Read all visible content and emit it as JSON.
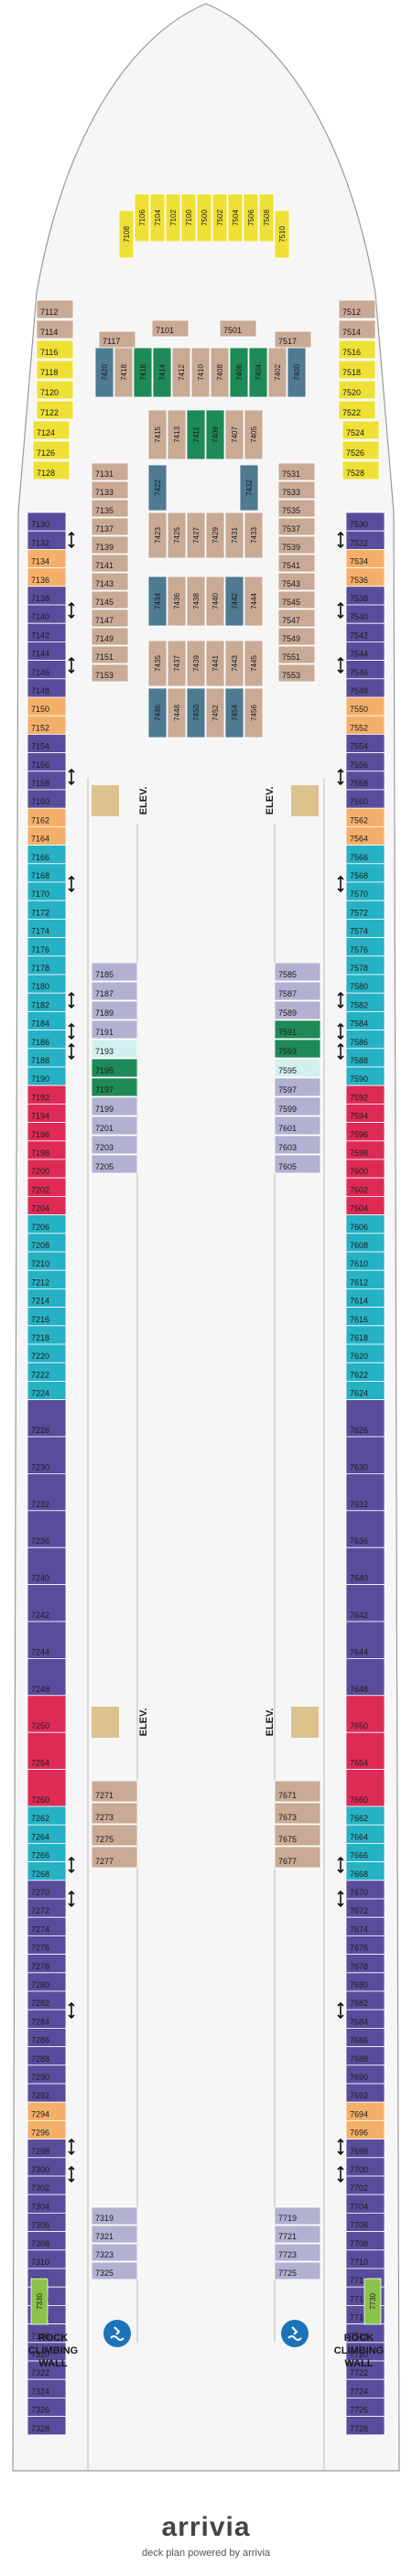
{
  "colors": {
    "gold": "#efe036",
    "tan": "#c9aa95",
    "orange": "#f4b06a",
    "teal": "#26b2c4",
    "purple": "#5a4c9c",
    "red": "#dd2b55",
    "dark_green": "#1e8a57",
    "blue_gray": "#4e7a92",
    "lavender": "#b3b1d2",
    "light_green": "#8bc34a",
    "pale_aqua": "#d2f0ee",
    "elev": "#dcc38e",
    "hull": "#f6f6f6",
    "outline": "#9a9a9a"
  },
  "icons": {
    "accessible_room": "accessible-icon",
    "connecting_room": "connecting-room-arrow-icon",
    "sofa_bed": "asterisk-icon",
    "pool": "pool-icon"
  },
  "labels": {
    "elevator": "ELEV.",
    "rock_wall": "ROCK CLIMBING WALL",
    "brand": "arrivia",
    "tagline": "deck plan powered by arrivia"
  },
  "forward_suites": [
    {
      "id": "7108",
      "color": "gold"
    },
    {
      "id": "7106",
      "color": "gold"
    },
    {
      "id": "7104",
      "color": "gold"
    },
    {
      "id": "7102",
      "color": "gold"
    },
    {
      "id": "7100",
      "color": "gold"
    },
    {
      "id": "7500",
      "color": "gold"
    },
    {
      "id": "7502",
      "color": "gold"
    },
    {
      "id": "7504",
      "color": "gold"
    },
    {
      "id": "7506",
      "color": "gold"
    },
    {
      "id": "7508",
      "color": "gold"
    },
    {
      "id": "7510",
      "color": "gold"
    }
  ],
  "forward_side_port": [
    {
      "id": "7112",
      "color": "tan"
    },
    {
      "id": "7114",
      "color": "tan"
    },
    {
      "id": "7116",
      "color": "gold"
    },
    {
      "id": "7118",
      "color": "gold"
    },
    {
      "id": "7120",
      "color": "gold"
    },
    {
      "id": "7122",
      "color": "gold"
    },
    {
      "id": "7124",
      "color": "gold"
    },
    {
      "id": "7126",
      "color": "gold"
    },
    {
      "id": "7128",
      "color": "gold"
    }
  ],
  "forward_side_starboard": [
    {
      "id": "7512",
      "color": "tan"
    },
    {
      "id": "7514",
      "color": "tan"
    },
    {
      "id": "7516",
      "color": "gold"
    },
    {
      "id": "7518",
      "color": "gold"
    },
    {
      "id": "7520",
      "color": "gold"
    },
    {
      "id": "7522",
      "color": "gold"
    },
    {
      "id": "7524",
      "color": "gold"
    },
    {
      "id": "7526",
      "color": "gold"
    },
    {
      "id": "7528",
      "color": "gold"
    }
  ],
  "forward_center_top": [
    {
      "id": "7117",
      "color": "tan"
    },
    {
      "id": "7101",
      "color": "tan"
    },
    {
      "id": "7501",
      "color": "tan"
    },
    {
      "id": "7517",
      "color": "tan"
    }
  ],
  "forward_center_vertical": [
    {
      "id": "7420",
      "color": "blue_gray"
    },
    {
      "id": "7418",
      "color": "tan"
    },
    {
      "id": "7416",
      "color": "dark_green"
    },
    {
      "id": "7414",
      "color": "dark_green"
    },
    {
      "id": "7412",
      "color": "tan"
    },
    {
      "id": "7410",
      "color": "tan"
    },
    {
      "id": "7408",
      "color": "tan"
    },
    {
      "id": "7406",
      "color": "dark_green"
    },
    {
      "id": "7404",
      "color": "dark_green"
    },
    {
      "id": "7402",
      "color": "tan"
    },
    {
      "id": "7400",
      "color": "blue_gray"
    }
  ],
  "port_rows": [
    {
      "id": "7130",
      "color": "purple"
    },
    {
      "id": "7132",
      "color": "purple"
    },
    {
      "id": "7134",
      "color": "orange"
    },
    {
      "id": "7136",
      "color": "orange"
    },
    {
      "id": "7138",
      "color": "purple"
    },
    {
      "id": "7140",
      "color": "purple"
    },
    {
      "id": "7142",
      "color": "purple"
    },
    {
      "id": "7144",
      "color": "purple"
    },
    {
      "id": "7146",
      "color": "purple"
    },
    {
      "id": "7148",
      "color": "purple"
    },
    {
      "id": "7150",
      "color": "orange"
    },
    {
      "id": "7152",
      "color": "orange"
    },
    {
      "id": "7154",
      "color": "purple"
    },
    {
      "id": "7156",
      "color": "purple"
    },
    {
      "id": "7158",
      "color": "purple"
    },
    {
      "id": "7160",
      "color": "purple"
    },
    {
      "id": "7162",
      "color": "orange"
    },
    {
      "id": "7164",
      "color": "orange"
    },
    {
      "id": "7166",
      "color": "teal"
    },
    {
      "id": "7168",
      "color": "teal"
    },
    {
      "id": "7170",
      "color": "teal"
    },
    {
      "id": "7172",
      "color": "teal"
    },
    {
      "id": "7174",
      "color": "teal"
    },
    {
      "id": "7176",
      "color": "teal"
    },
    {
      "id": "7178",
      "color": "teal"
    },
    {
      "id": "7180",
      "color": "teal"
    },
    {
      "id": "7182",
      "color": "teal"
    },
    {
      "id": "7184",
      "color": "teal"
    },
    {
      "id": "7186",
      "color": "teal"
    },
    {
      "id": "7188",
      "color": "teal"
    },
    {
      "id": "7190",
      "color": "teal"
    },
    {
      "id": "7192",
      "color": "red"
    },
    {
      "id": "7194",
      "color": "red"
    },
    {
      "id": "7196",
      "color": "red"
    },
    {
      "id": "7198",
      "color": "red"
    },
    {
      "id": "7200",
      "color": "red"
    },
    {
      "id": "7202",
      "color": "red"
    },
    {
      "id": "7204",
      "color": "red"
    },
    {
      "id": "7206",
      "color": "teal"
    },
    {
      "id": "7208",
      "color": "teal"
    },
    {
      "id": "7210",
      "color": "teal"
    },
    {
      "id": "7212",
      "color": "teal"
    },
    {
      "id": "7214",
      "color": "teal"
    },
    {
      "id": "7216",
      "color": "teal"
    },
    {
      "id": "7218",
      "color": "teal"
    },
    {
      "id": "7220",
      "color": "teal"
    },
    {
      "id": "7222",
      "color": "teal"
    },
    {
      "id": "7224",
      "color": "teal"
    },
    {
      "id": "7226",
      "color": "purple"
    },
    {
      "id": "7230",
      "color": "purple"
    },
    {
      "id": "7232",
      "color": "purple"
    },
    {
      "id": "7236",
      "color": "purple"
    },
    {
      "id": "7240",
      "color": "purple"
    },
    {
      "id": "7242",
      "color": "purple"
    },
    {
      "id": "7244",
      "color": "purple"
    },
    {
      "id": "7248",
      "color": "purple"
    },
    {
      "id": "7250",
      "color": "red"
    },
    {
      "id": "7254",
      "color": "red"
    },
    {
      "id": "7260",
      "color": "red"
    },
    {
      "id": "7262",
      "color": "teal"
    },
    {
      "id": "7264",
      "color": "teal"
    },
    {
      "id": "7266",
      "color": "teal"
    },
    {
      "id": "7268",
      "color": "teal"
    },
    {
      "id": "7270",
      "color": "purple"
    },
    {
      "id": "7272",
      "color": "purple"
    },
    {
      "id": "7274",
      "color": "purple"
    },
    {
      "id": "7276",
      "color": "purple"
    },
    {
      "id": "7278",
      "color": "purple"
    },
    {
      "id": "7280",
      "color": "purple"
    },
    {
      "id": "7282",
      "color": "purple"
    },
    {
      "id": "7284",
      "color": "purple"
    },
    {
      "id": "7286",
      "color": "purple"
    },
    {
      "id": "7288",
      "color": "purple"
    },
    {
      "id": "7290",
      "color": "purple"
    },
    {
      "id": "7292",
      "color": "purple"
    },
    {
      "id": "7294",
      "color": "orange"
    },
    {
      "id": "7296",
      "color": "orange"
    },
    {
      "id": "7298",
      "color": "purple"
    },
    {
      "id": "7300",
      "color": "purple"
    },
    {
      "id": "7302",
      "color": "purple"
    },
    {
      "id": "7304",
      "color": "purple"
    },
    {
      "id": "7306",
      "color": "purple"
    },
    {
      "id": "7308",
      "color": "purple"
    },
    {
      "id": "7310",
      "color": "purple"
    },
    {
      "id": "7312",
      "color": "purple"
    },
    {
      "id": "7314",
      "color": "purple"
    },
    {
      "id": "7316",
      "color": "purple"
    },
    {
      "id": "7318",
      "color": "purple"
    },
    {
      "id": "7320",
      "color": "purple"
    },
    {
      "id": "7322",
      "color": "purple"
    },
    {
      "id": "7324",
      "color": "purple"
    },
    {
      "id": "7326",
      "color": "purple"
    },
    {
      "id": "7328",
      "color": "purple"
    }
  ],
  "starboard_rows": [
    {
      "id": "7530",
      "color": "purple"
    },
    {
      "id": "7532",
      "color": "purple"
    },
    {
      "id": "7534",
      "color": "orange"
    },
    {
      "id": "7536",
      "color": "orange"
    },
    {
      "id": "7538",
      "color": "purple"
    },
    {
      "id": "7540",
      "color": "purple"
    },
    {
      "id": "7542",
      "color": "purple"
    },
    {
      "id": "7544",
      "color": "purple"
    },
    {
      "id": "7546",
      "color": "purple"
    },
    {
      "id": "7548",
      "color": "purple"
    },
    {
      "id": "7550",
      "color": "orange"
    },
    {
      "id": "7552",
      "color": "orange"
    },
    {
      "id": "7554",
      "color": "purple"
    },
    {
      "id": "7556",
      "color": "purple"
    },
    {
      "id": "7558",
      "color": "purple"
    },
    {
      "id": "7560",
      "color": "purple"
    },
    {
      "id": "7562",
      "color": "orange"
    },
    {
      "id": "7564",
      "color": "orange"
    },
    {
      "id": "7566",
      "color": "teal"
    },
    {
      "id": "7568",
      "color": "teal"
    },
    {
      "id": "7570",
      "color": "teal"
    },
    {
      "id": "7572",
      "color": "teal"
    },
    {
      "id": "7574",
      "color": "teal"
    },
    {
      "id": "7576",
      "color": "teal"
    },
    {
      "id": "7578",
      "color": "teal"
    },
    {
      "id": "7580",
      "color": "teal"
    },
    {
      "id": "7582",
      "color": "teal"
    },
    {
      "id": "7584",
      "color": "teal"
    },
    {
      "id": "7586",
      "color": "teal"
    },
    {
      "id": "7588",
      "color": "teal"
    },
    {
      "id": "7590",
      "color": "teal"
    },
    {
      "id": "7592",
      "color": "red"
    },
    {
      "id": "7594",
      "color": "red"
    },
    {
      "id": "7596",
      "color": "red"
    },
    {
      "id": "7598",
      "color": "red"
    },
    {
      "id": "7600",
      "color": "red"
    },
    {
      "id": "7602",
      "color": "red"
    },
    {
      "id": "7604",
      "color": "red"
    },
    {
      "id": "7606",
      "color": "teal"
    },
    {
      "id": "7608",
      "color": "teal"
    },
    {
      "id": "7610",
      "color": "teal"
    },
    {
      "id": "7612",
      "color": "teal"
    },
    {
      "id": "7614",
      "color": "teal"
    },
    {
      "id": "7616",
      "color": "teal"
    },
    {
      "id": "7618",
      "color": "teal"
    },
    {
      "id": "7620",
      "color": "teal"
    },
    {
      "id": "7622",
      "color": "teal"
    },
    {
      "id": "7624",
      "color": "teal"
    },
    {
      "id": "7626",
      "color": "purple"
    },
    {
      "id": "7630",
      "color": "purple"
    },
    {
      "id": "7632",
      "color": "purple"
    },
    {
      "id": "7636",
      "color": "purple"
    },
    {
      "id": "7640",
      "color": "purple"
    },
    {
      "id": "7642",
      "color": "purple"
    },
    {
      "id": "7644",
      "color": "purple"
    },
    {
      "id": "7648",
      "color": "purple"
    },
    {
      "id": "7650",
      "color": "red"
    },
    {
      "id": "7654",
      "color": "red"
    },
    {
      "id": "7660",
      "color": "red"
    },
    {
      "id": "7662",
      "color": "teal"
    },
    {
      "id": "7664",
      "color": "teal"
    },
    {
      "id": "7666",
      "color": "teal"
    },
    {
      "id": "7668",
      "color": "teal"
    },
    {
      "id": "7670",
      "color": "purple"
    },
    {
      "id": "7672",
      "color": "purple"
    },
    {
      "id": "7674",
      "color": "purple"
    },
    {
      "id": "7676",
      "color": "purple"
    },
    {
      "id": "7678",
      "color": "purple"
    },
    {
      "id": "7680",
      "color": "purple"
    },
    {
      "id": "7682",
      "color": "purple"
    },
    {
      "id": "7684",
      "color": "purple"
    },
    {
      "id": "7686",
      "color": "purple"
    },
    {
      "id": "7688",
      "color": "purple"
    },
    {
      "id": "7690",
      "color": "purple"
    },
    {
      "id": "7692",
      "color": "purple"
    },
    {
      "id": "7694",
      "color": "orange"
    },
    {
      "id": "7696",
      "color": "orange"
    },
    {
      "id": "7698",
      "color": "purple"
    },
    {
      "id": "7700",
      "color": "purple"
    },
    {
      "id": "7702",
      "color": "purple"
    },
    {
      "id": "7704",
      "color": "purple"
    },
    {
      "id": "7706",
      "color": "purple"
    },
    {
      "id": "7708",
      "color": "purple"
    },
    {
      "id": "7710",
      "color": "purple"
    },
    {
      "id": "7712",
      "color": "purple"
    },
    {
      "id": "7714",
      "color": "purple"
    },
    {
      "id": "7716",
      "color": "purple"
    },
    {
      "id": "7718",
      "color": "purple"
    },
    {
      "id": "7720",
      "color": "purple"
    },
    {
      "id": "7722",
      "color": "purple"
    },
    {
      "id": "7724",
      "color": "purple"
    },
    {
      "id": "7726",
      "color": "purple"
    },
    {
      "id": "7728",
      "color": "purple"
    }
  ],
  "port_aft_special": {
    "id": "7330",
    "color": "light_green"
  },
  "starboard_aft_special": {
    "id": "7730",
    "color": "light_green"
  },
  "inner_port_fwd": [
    "7131",
    "7133",
    "7135",
    "7137",
    "7139",
    "7141",
    "7143",
    "7145",
    "7147",
    "7149",
    "7151",
    "7153"
  ],
  "inner_starboard_fwd": [
    "7531",
    "7533",
    "7535",
    "7537",
    "7539",
    "7541",
    "7543",
    "7545",
    "7547",
    "7549",
    "7551",
    "7553"
  ],
  "center_vertical_a": [
    {
      "id": "7415",
      "color": "tan"
    },
    {
      "id": "7413",
      "color": "tan"
    },
    {
      "id": "7411",
      "color": "dark_green"
    },
    {
      "id": "7409",
      "color": "dark_green"
    },
    {
      "id": "7407",
      "color": "tan"
    },
    {
      "id": "7405",
      "color": "tan"
    }
  ],
  "center_vertical_b": [
    {
      "id": "7422",
      "color": "blue_gray"
    },
    {
      "id": "7432",
      "color": "blue_gray"
    }
  ],
  "center_vertical_c": [
    {
      "id": "7423",
      "color": "tan"
    },
    {
      "id": "7425",
      "color": "tan"
    },
    {
      "id": "7427",
      "color": "tan"
    },
    {
      "id": "7429",
      "color": "tan"
    },
    {
      "id": "7431",
      "color": "tan"
    },
    {
      "id": "7433",
      "color": "tan"
    }
  ],
  "center_vertical_d": [
    {
      "id": "7434",
      "color": "blue_gray"
    },
    {
      "id": "7436",
      "color": "tan"
    },
    {
      "id": "7438",
      "color": "tan"
    },
    {
      "id": "7440",
      "color": "tan"
    },
    {
      "id": "7442",
      "color": "blue_gray"
    },
    {
      "id": "7444",
      "color": "tan"
    }
  ],
  "center_vertical_e": [
    {
      "id": "7435",
      "color": "tan"
    },
    {
      "id": "7437",
      "color": "tan"
    },
    {
      "id": "7439",
      "color": "tan"
    },
    {
      "id": "7441",
      "color": "tan"
    },
    {
      "id": "7443",
      "color": "tan"
    },
    {
      "id": "7445",
      "color": "tan"
    }
  ],
  "center_vertical_f": [
    {
      "id": "7446",
      "color": "blue_gray"
    },
    {
      "id": "7448",
      "color": "tan"
    },
    {
      "id": "7450",
      "color": "blue_gray"
    },
    {
      "id": "7452",
      "color": "tan"
    },
    {
      "id": "7454",
      "color": "blue_gray"
    },
    {
      "id": "7456",
      "color": "tan"
    }
  ],
  "inner_port_mid": [
    {
      "id": "7185",
      "color": "lavender"
    },
    {
      "id": "7187",
      "color": "lavender"
    },
    {
      "id": "7189",
      "color": "lavender"
    },
    {
      "id": "7191",
      "color": "lavender"
    },
    {
      "id": "7193",
      "color": "pale_aqua"
    },
    {
      "id": "7195",
      "color": "dark_green"
    },
    {
      "id": "7197",
      "color": "dark_green"
    },
    {
      "id": "7199",
      "color": "lavender"
    },
    {
      "id": "7201",
      "color": "lavender"
    },
    {
      "id": "7203",
      "color": "lavender"
    },
    {
      "id": "7205",
      "color": "lavender"
    }
  ],
  "inner_starboard_mid": [
    {
      "id": "7585",
      "color": "lavender"
    },
    {
      "id": "7587",
      "color": "lavender"
    },
    {
      "id": "7589",
      "color": "lavender"
    },
    {
      "id": "7591",
      "color": "dark_green"
    },
    {
      "id": "7593",
      "color": "dark_green"
    },
    {
      "id": "7595",
      "color": "pale_aqua"
    },
    {
      "id": "7597",
      "color": "lavender"
    },
    {
      "id": "7599",
      "color": "lavender"
    },
    {
      "id": "7601",
      "color": "lavender"
    },
    {
      "id": "7603",
      "color": "lavender"
    },
    {
      "id": "7605",
      "color": "lavender"
    }
  ],
  "inner_port_aft_a": [
    "7271",
    "7273",
    "7275",
    "7277"
  ],
  "inner_starboard_aft_a": [
    "7671",
    "7673",
    "7675",
    "7677"
  ],
  "inner_port_aft_b": [
    "7319",
    "7321",
    "7323",
    "7325"
  ],
  "inner_starboard_aft_b": [
    "7719",
    "7721",
    "7723",
    "7725"
  ]
}
